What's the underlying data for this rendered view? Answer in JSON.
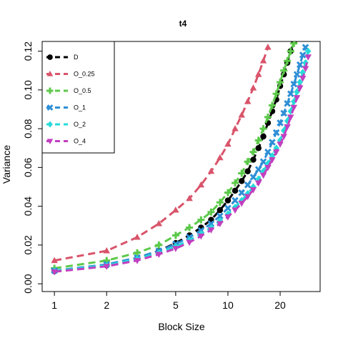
{
  "chart_data": {
    "type": "line",
    "title": "t4",
    "xlabel": "Block Size",
    "ylabel": "Variance",
    "x_scale": "log",
    "xlim": [
      0.85,
      34
    ],
    "ylim": [
      -0.004,
      0.125
    ],
    "x_ticks": [
      1,
      2,
      5,
      10,
      20
    ],
    "x_tick_labels": [
      "1",
      "2",
      "5",
      "10",
      "20"
    ],
    "y_ticks": [
      0.0,
      0.02,
      0.04,
      0.06,
      0.08,
      0.1,
      0.12
    ],
    "y_tick_labels": [
      "0.00",
      "0.02",
      "0.04",
      "0.06",
      "0.08",
      "0.10",
      "0.12"
    ],
    "grid": false,
    "legend_position": "top-left",
    "series": [
      {
        "name": "D",
        "color": "#000000",
        "marker": "circle",
        "x": [
          1,
          2,
          3,
          4,
          5,
          6,
          7,
          8,
          9,
          10,
          11,
          12,
          13,
          14,
          15,
          16,
          17,
          18,
          19,
          20,
          21,
          22,
          23,
          24,
          25,
          26
        ],
        "values": [
          0.0065,
          0.0095,
          0.013,
          0.017,
          0.021,
          0.025,
          0.029,
          0.033,
          0.038,
          0.043,
          0.048,
          0.053,
          0.058,
          0.064,
          0.07,
          0.076,
          0.083,
          0.089,
          0.095,
          0.102,
          0.108,
          0.114,
          0.12,
          0.125,
          0.13,
          0.135
        ]
      },
      {
        "name": "O_0.25",
        "color": "#d9546a",
        "marker": "triangle",
        "x": [
          1,
          2,
          3,
          4,
          5,
          6,
          7,
          8,
          9,
          10,
          11,
          12,
          13,
          14,
          15,
          16,
          17
        ],
        "values": [
          0.012,
          0.017,
          0.024,
          0.031,
          0.038,
          0.044,
          0.051,
          0.058,
          0.065,
          0.072,
          0.08,
          0.087,
          0.094,
          0.101,
          0.108,
          0.115,
          0.122
        ]
      },
      {
        "name": "O_0.5",
        "color": "#5cc94a",
        "marker": "plus",
        "x": [
          1,
          2,
          3,
          4,
          5,
          6,
          7,
          8,
          9,
          10,
          11,
          12,
          13,
          14,
          15,
          16,
          17,
          18,
          19,
          20,
          21,
          22,
          23,
          24,
          25
        ],
        "values": [
          0.008,
          0.012,
          0.016,
          0.02,
          0.025,
          0.029,
          0.033,
          0.037,
          0.042,
          0.047,
          0.052,
          0.057,
          0.063,
          0.068,
          0.074,
          0.08,
          0.086,
          0.092,
          0.098,
          0.104,
          0.11,
          0.115,
          0.12,
          0.124,
          0.128
        ]
      },
      {
        "name": "O_1",
        "color": "#2f8fd6",
        "marker": "cross",
        "x": [
          1,
          2,
          3,
          4,
          5,
          6,
          7,
          8,
          9,
          10,
          11,
          12,
          13,
          14,
          15,
          16,
          17,
          18,
          19,
          20,
          21,
          22,
          23,
          24,
          25,
          26,
          27,
          28
        ],
        "values": [
          0.0068,
          0.01,
          0.0135,
          0.017,
          0.0205,
          0.024,
          0.0275,
          0.031,
          0.035,
          0.039,
          0.043,
          0.047,
          0.051,
          0.055,
          0.059,
          0.063,
          0.068,
          0.073,
          0.078,
          0.083,
          0.088,
          0.093,
          0.098,
          0.103,
          0.108,
          0.113,
          0.118,
          0.122
        ]
      },
      {
        "name": "O_2",
        "color": "#28d9d9",
        "marker": "diamond",
        "x": [
          1,
          2,
          3,
          4,
          5,
          6,
          7,
          8,
          9,
          10,
          11,
          12,
          13,
          14,
          15,
          16,
          17,
          18,
          19,
          20,
          21,
          22,
          23,
          24,
          25,
          26,
          27,
          28,
          29
        ],
        "values": [
          0.0066,
          0.0095,
          0.0128,
          0.016,
          0.0192,
          0.0225,
          0.0258,
          0.029,
          0.0325,
          0.036,
          0.0395,
          0.043,
          0.0465,
          0.05,
          0.054,
          0.058,
          0.062,
          0.066,
          0.07,
          0.074,
          0.079,
          0.084,
          0.089,
          0.094,
          0.099,
          0.104,
          0.109,
          0.114,
          0.12
        ]
      },
      {
        "name": "O_4",
        "color": "#c23fbf",
        "marker": "triangle-down",
        "x": [
          1,
          2,
          3,
          4,
          5,
          6,
          7,
          8,
          9,
          10,
          11,
          12,
          13,
          14,
          15,
          16,
          17,
          18,
          19,
          20,
          21,
          22,
          23,
          24,
          25,
          26,
          27,
          28,
          29
        ],
        "values": [
          0.0062,
          0.009,
          0.012,
          0.0152,
          0.0182,
          0.0214,
          0.0246,
          0.0278,
          0.031,
          0.0345,
          0.038,
          0.0415,
          0.045,
          0.0485,
          0.052,
          0.056,
          0.06,
          0.064,
          0.068,
          0.072,
          0.076,
          0.081,
          0.086,
          0.091,
          0.096,
          0.101,
          0.106,
          0.111,
          0.117
        ]
      }
    ]
  }
}
